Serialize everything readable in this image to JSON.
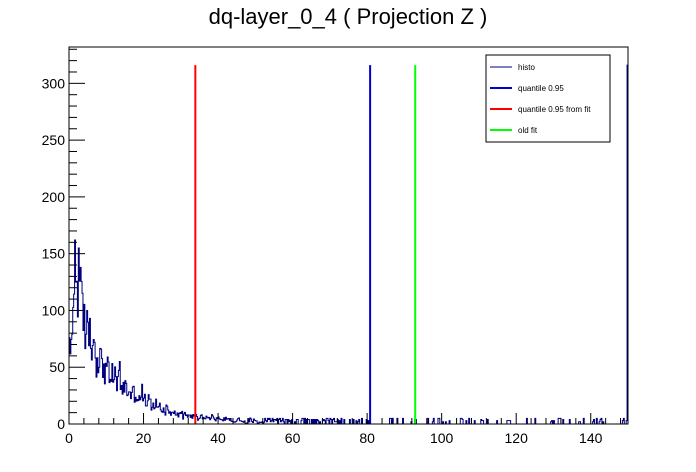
{
  "chart_data": {
    "type": "line",
    "title": "dq-layer_0_4 ( Projection Z )",
    "xlabel": "",
    "ylabel": "",
    "xlim": [
      0,
      150
    ],
    "ylim": [
      0,
      332
    ],
    "xticks": [
      0,
      20,
      40,
      60,
      80,
      100,
      120,
      140
    ],
    "yticks": [
      0,
      50,
      100,
      150,
      200,
      250,
      300
    ],
    "legend_position": "top-right",
    "series": [
      {
        "name": "histo",
        "color": "#000080",
        "kind": "histogram",
        "bin_width": 0.25,
        "bin_centers": [
          0.5,
          1.5,
          2.5,
          3.5,
          4.5,
          5.5,
          6.5,
          7.5,
          8.5,
          9.5,
          10.5,
          11.5,
          12.5,
          13.5,
          14.5,
          15.5,
          16.5,
          17.5,
          18.5,
          19.5,
          21,
          23,
          25,
          27,
          29,
          31,
          33,
          35,
          37,
          39,
          42.5,
          47.5,
          52.5,
          57.5,
          62.5,
          67.5,
          72.5,
          77.5,
          82.5,
          87.5,
          92.5,
          97.5,
          102.5,
          107.5,
          112.5,
          117.5,
          122.5,
          127.5,
          132.5,
          137.5,
          142.5,
          147.5
        ],
        "typical_values": [
          60,
          140,
          130,
          95,
          85,
          75,
          70,
          60,
          55,
          50,
          45,
          42,
          40,
          37,
          33,
          30,
          28,
          26,
          24,
          22,
          20,
          17,
          14,
          12,
          10,
          8,
          7,
          6,
          6,
          5,
          4,
          3,
          3,
          2,
          2,
          1.5,
          1.5,
          1,
          1,
          1,
          1,
          1,
          1,
          1,
          0.5,
          0.5,
          0.5,
          0.5,
          0.5,
          0.5,
          0.5,
          0.5
        ],
        "peak": {
          "x": 1.5,
          "y": 162
        },
        "spikes": [
          {
            "x": 2.5,
            "y": 155
          },
          {
            "x": 5.5,
            "y": 93
          },
          {
            "x": 13.5,
            "y": 55
          },
          {
            "x": 19.5,
            "y": 35
          },
          {
            "x": 150,
            "y": 316
          }
        ]
      },
      {
        "name": "quantile 0.95",
        "color": "#0000cc",
        "kind": "vline",
        "x": 80.8,
        "y_top": 316
      },
      {
        "name": "quantile 0.95 from fit",
        "color": "#ff0000",
        "kind": "vline",
        "x": 33.9,
        "y_top": 316
      },
      {
        "name": "old fit",
        "color": "#00ff00",
        "kind": "vline",
        "x": 92.9,
        "y_top": 316
      }
    ]
  }
}
